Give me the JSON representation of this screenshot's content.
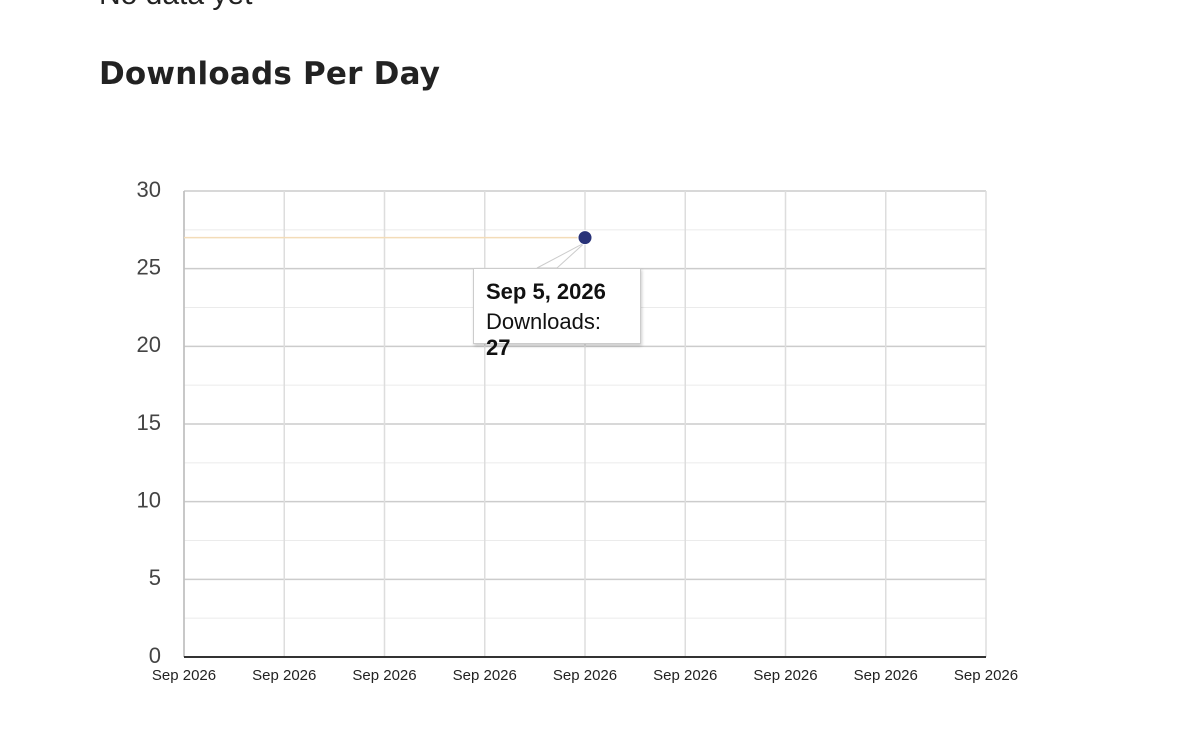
{
  "page": {
    "top_text": "No data yet",
    "heading": "Downloads Per Day"
  },
  "chart_data": {
    "type": "line",
    "categories": [
      "Sep 2026",
      "Sep 2026",
      "Sep 2026",
      "Sep 2026",
      "Sep 2026",
      "Sep 2026",
      "Sep 2026",
      "Sep 2026",
      "Sep 2026"
    ],
    "series": [
      {
        "color": "#283278",
        "values": [
          null,
          null,
          null,
          null,
          27,
          null,
          null,
          null,
          null
        ]
      }
    ],
    "ylim": [
      0,
      30
    ],
    "yticks": [
      0,
      5,
      10,
      15,
      20,
      25,
      30
    ],
    "yminorticks": [
      2.5,
      7.5,
      12.5,
      17.5,
      22.5,
      27.5
    ],
    "grid": true,
    "crosshair_color": "#f3dcb8",
    "tooltip": {
      "title": "Sep 5, 2026",
      "label": "Downloads:"
    }
  }
}
